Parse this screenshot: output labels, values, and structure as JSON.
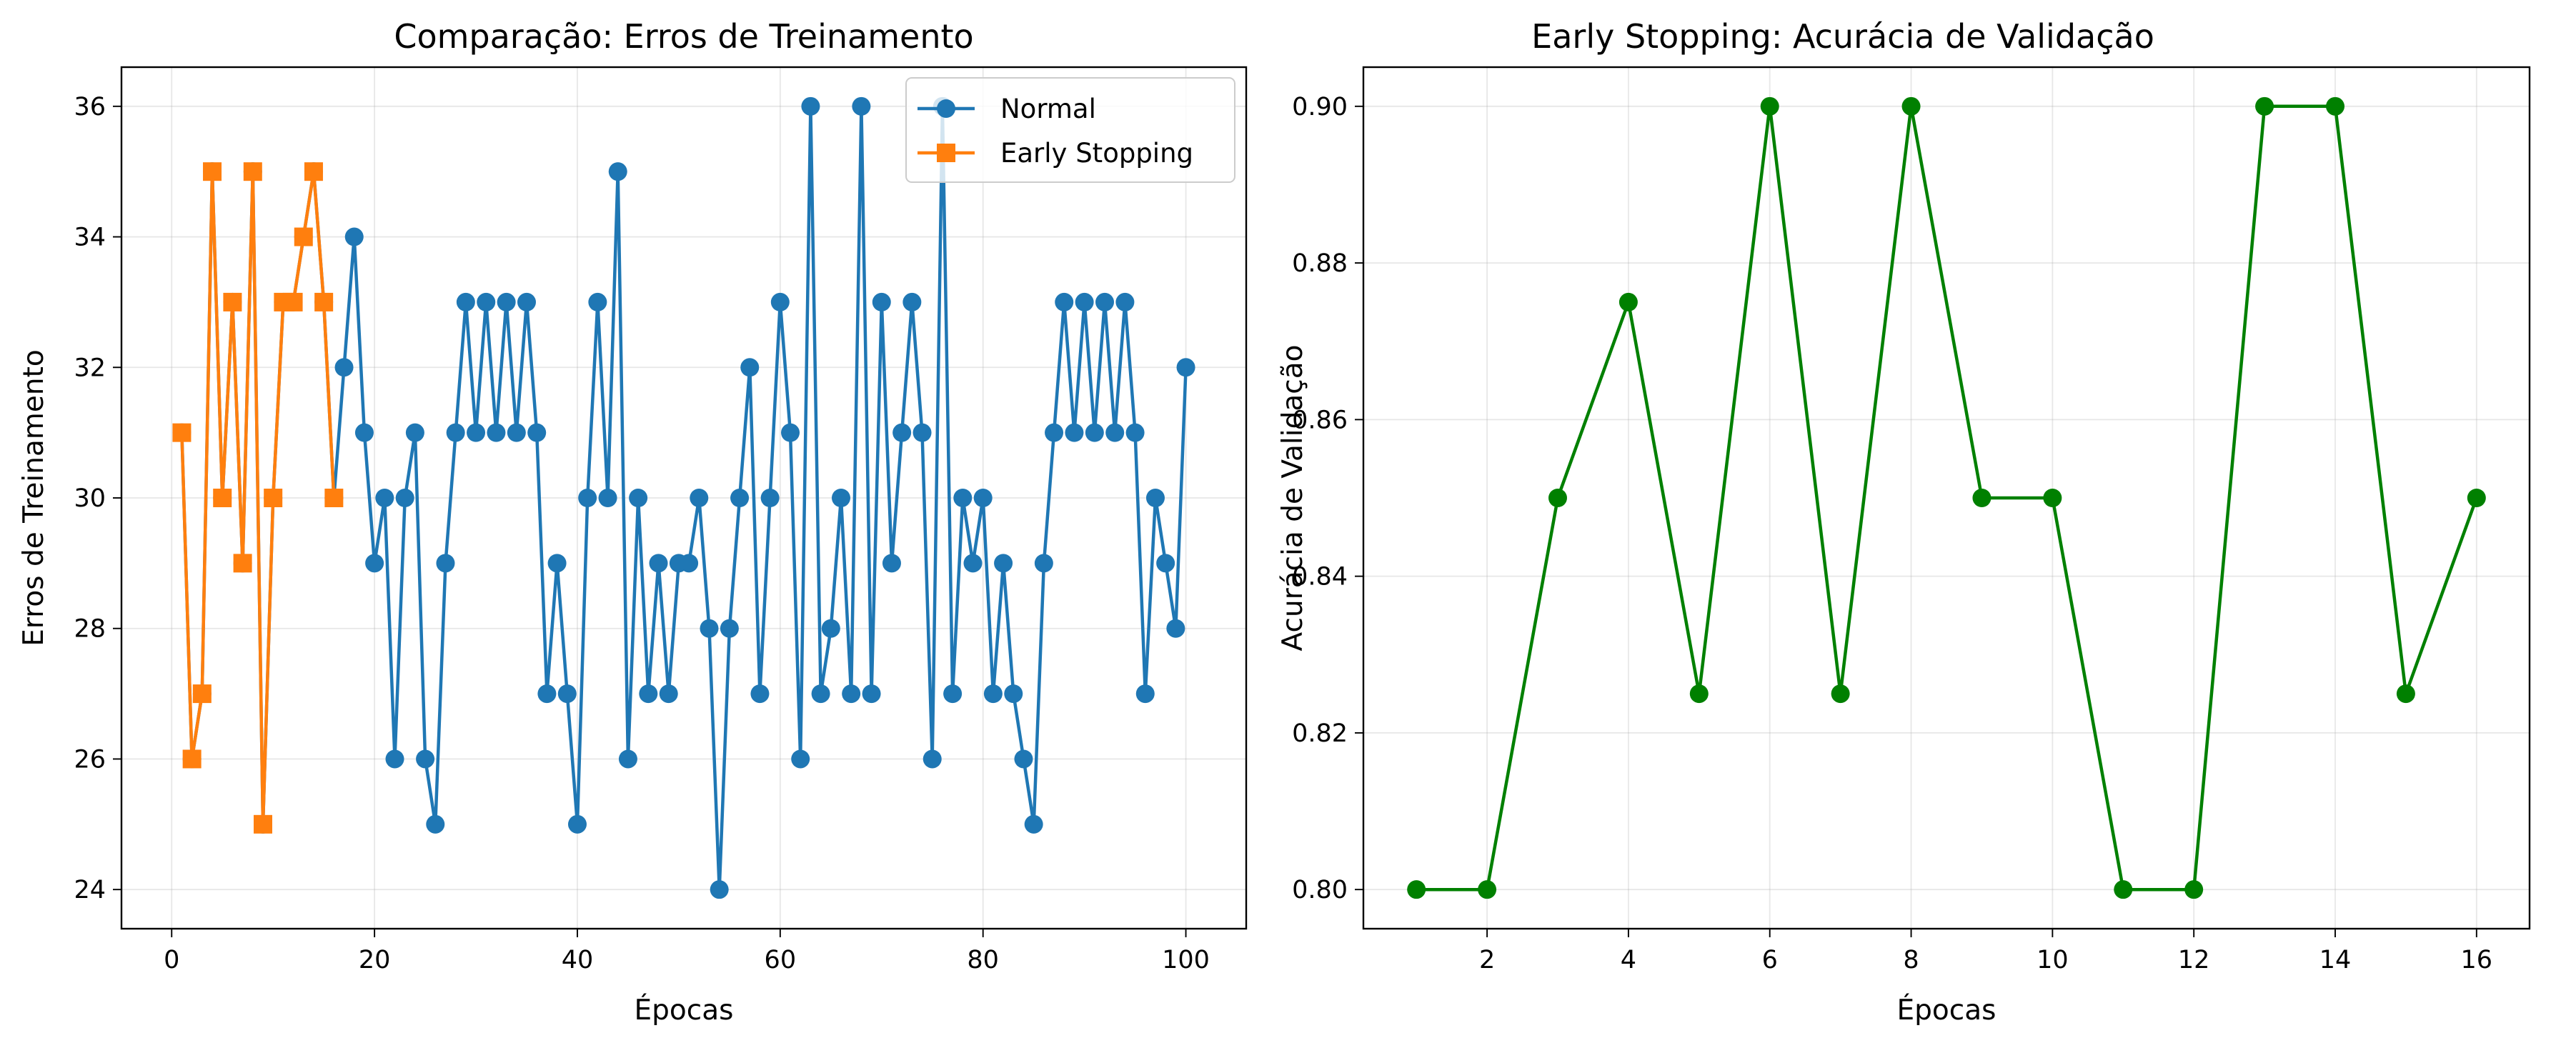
{
  "chart_data": [
    {
      "type": "line",
      "title": "Comparação: Erros de Treinamento",
      "xlabel": "Épocas",
      "ylabel": "Erros de Treinamento",
      "xlim": [
        -4.95,
        105.95
      ],
      "ylim": [
        23.4,
        36.6
      ],
      "xticks": [
        0,
        20,
        40,
        60,
        80,
        100
      ],
      "yticks": [
        24,
        26,
        28,
        30,
        32,
        34,
        36
      ],
      "grid": true,
      "legend_position": "top-right",
      "series": [
        {
          "name": "Normal",
          "color": "#1f77b4",
          "marker": "circle",
          "x": [
            1,
            2,
            3,
            4,
            5,
            6,
            7,
            8,
            9,
            10,
            11,
            12,
            13,
            14,
            15,
            16,
            17,
            18,
            19,
            20,
            21,
            22,
            23,
            24,
            25,
            26,
            27,
            28,
            29,
            30,
            31,
            32,
            33,
            34,
            35,
            36,
            37,
            38,
            39,
            40,
            41,
            42,
            43,
            44,
            45,
            46,
            47,
            48,
            49,
            50,
            51,
            52,
            53,
            54,
            55,
            56,
            57,
            58,
            59,
            60,
            61,
            62,
            63,
            64,
            65,
            66,
            67,
            68,
            69,
            70,
            71,
            72,
            73,
            74,
            75,
            76,
            77,
            78,
            79,
            80,
            81,
            82,
            83,
            84,
            85,
            86,
            87,
            88,
            89,
            90,
            91,
            92,
            93,
            94,
            95,
            96,
            97,
            98,
            99,
            100
          ],
          "values": [
            31,
            26,
            27,
            35,
            30,
            33,
            29,
            35,
            25,
            30,
            33,
            33,
            34,
            35,
            33,
            30,
            32,
            34,
            31,
            29,
            30,
            26,
            30,
            31,
            26,
            25,
            29,
            31,
            33,
            31,
            33,
            31,
            33,
            31,
            33,
            31,
            27,
            29,
            27,
            25,
            30,
            33,
            30,
            35,
            26,
            30,
            27,
            29,
            27,
            29,
            29,
            30,
            28,
            24,
            28,
            30,
            32,
            27,
            30,
            33,
            31,
            26,
            36,
            27,
            28,
            30,
            27,
            36,
            27,
            33,
            29,
            31,
            33,
            31,
            26,
            36,
            27,
            30,
            29,
            30,
            27,
            29,
            27,
            26,
            25,
            29,
            31,
            33,
            31,
            33,
            31,
            33,
            31,
            33,
            31,
            27,
            30,
            29,
            28,
            32
          ]
        },
        {
          "name": "Early Stopping",
          "color": "#ff7f0e",
          "marker": "square",
          "x": [
            1,
            2,
            3,
            4,
            5,
            6,
            7,
            8,
            9,
            10,
            11,
            12,
            13,
            14,
            15,
            16
          ],
          "values": [
            31,
            26,
            27,
            35,
            30,
            33,
            29,
            35,
            25,
            30,
            33,
            33,
            34,
            35,
            33,
            30
          ]
        }
      ]
    },
    {
      "type": "line",
      "title": "Early Stopping: Acurácia de Validação",
      "xlabel": "Épocas",
      "ylabel": "Acurácia de Validação",
      "xlim": [
        0.25,
        16.75
      ],
      "ylim": [
        0.795,
        0.905
      ],
      "xticks": [
        2,
        4,
        6,
        8,
        10,
        12,
        14,
        16
      ],
      "yticks": [
        "0.80",
        "0.82",
        "0.84",
        "0.86",
        "0.88",
        "0.90"
      ],
      "grid": true,
      "series": [
        {
          "color": "#008000",
          "marker": "circle",
          "x": [
            1,
            2,
            3,
            4,
            5,
            6,
            7,
            8,
            9,
            10,
            11,
            12,
            13,
            14,
            15,
            16
          ],
          "values": [
            0.8,
            0.8,
            0.85,
            0.875,
            0.825,
            0.9,
            0.825,
            0.9,
            0.85,
            0.85,
            0.8,
            0.8,
            0.9,
            0.9,
            0.825,
            0.85
          ]
        }
      ]
    }
  ]
}
